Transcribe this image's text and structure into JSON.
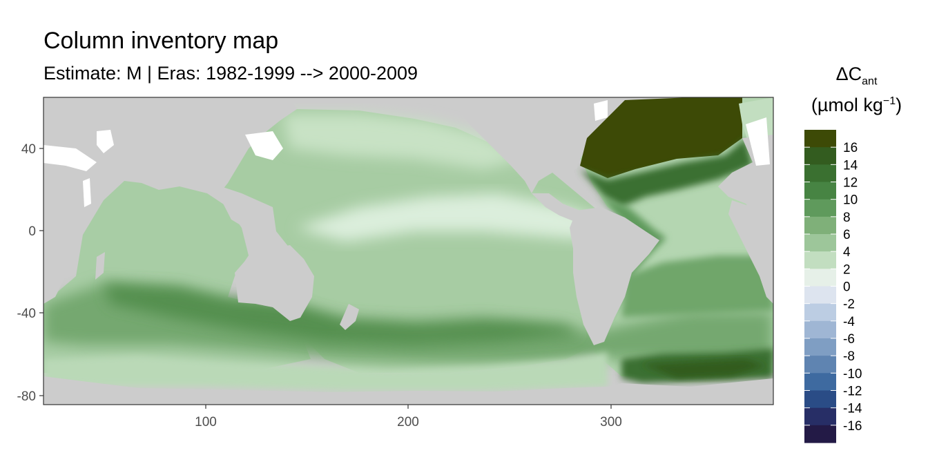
{
  "title": "Column inventory map",
  "subtitle": "Estimate: M  | Eras: 1982-1999 --> 2000-2009",
  "legend": {
    "title_main": "ΔC",
    "title_sub": "ant",
    "unit_open": "(µmol kg",
    "unit_sup": "−1",
    "unit_close": ")",
    "labels": [
      "16",
      "14",
      "12",
      "10",
      "8",
      "6",
      "4",
      "2",
      "0",
      "-2",
      "-4",
      "-6",
      "-8",
      "-10",
      "-12",
      "-14",
      "-16"
    ],
    "colors": [
      "#3d4a06",
      "#335c1f",
      "#3a7030",
      "#478443",
      "#5f9a5c",
      "#7fb079",
      "#9dc69a",
      "#c2dec0",
      "#e6f0e8",
      "#dde4ef",
      "#bccde3",
      "#9fb6d4",
      "#7f9ec3",
      "#5f84b1",
      "#3e6aa0",
      "#2a4c86",
      "#272e66",
      "#231a46"
    ]
  },
  "map": {
    "land_color": "#cccccc",
    "x_ticks": [
      "100",
      "200",
      "300"
    ],
    "y_ticks": [
      "40",
      "0",
      "-40",
      "-80"
    ]
  },
  "chart_data": {
    "type": "heatmap",
    "title": "Column inventory map",
    "subtitle": "Estimate: M  | Eras: 1982-1999 --> 2000-2009",
    "xlim": [
      20,
      380
    ],
    "ylim": [
      -85,
      65
    ],
    "x_ticks": [
      100,
      200,
      300
    ],
    "y_ticks": [
      40,
      0,
      -40,
      -80
    ],
    "legend_position": "right",
    "color_breaks": [
      -18,
      -16,
      -14,
      -12,
      -10,
      -8,
      -6,
      -4,
      -2,
      0,
      2,
      4,
      6,
      8,
      10,
      12,
      14,
      16,
      18
    ],
    "regions": [
      {
        "lon": 340,
        "lat": 55,
        "value": 17
      },
      {
        "lon": 320,
        "lat": 38,
        "value": 14
      },
      {
        "lon": 310,
        "lat": 10,
        "value": 10
      },
      {
        "lon": 330,
        "lat": -20,
        "value": 8
      },
      {
        "lon": 340,
        "lat": -65,
        "value": 13
      },
      {
        "lon": 200,
        "lat": 30,
        "value": 4
      },
      {
        "lon": 220,
        "lat": 5,
        "value": 1
      },
      {
        "lon": 150,
        "lat": -45,
        "value": 9
      },
      {
        "lon": 80,
        "lat": -45,
        "value": 10
      },
      {
        "lon": 230,
        "lat": -45,
        "value": 8
      },
      {
        "lon": 70,
        "lat": -5,
        "value": 4
      },
      {
        "lon": 150,
        "lat": -65,
        "value": 3
      },
      {
        "lon": 250,
        "lat": -65,
        "value": 2
      }
    ]
  }
}
